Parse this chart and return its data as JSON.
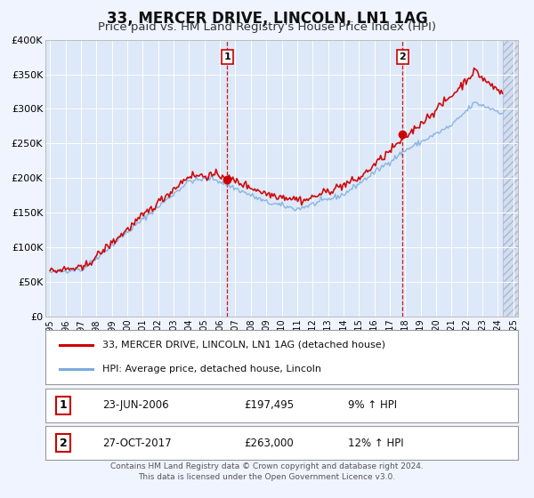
{
  "title": "33, MERCER DRIVE, LINCOLN, LN1 1AG",
  "subtitle": "Price paid vs. HM Land Registry's House Price Index (HPI)",
  "ylim": [
    0,
    400000
  ],
  "yticks": [
    0,
    50000,
    100000,
    150000,
    200000,
    250000,
    300000,
    350000,
    400000
  ],
  "ytick_labels": [
    "£0",
    "£50K",
    "£100K",
    "£150K",
    "£200K",
    "£250K",
    "£300K",
    "£350K",
    "£400K"
  ],
  "xlim": [
    1994.7,
    2025.3
  ],
  "data_xlim_end": 2024.3,
  "xticks": [
    1995,
    1996,
    1997,
    1998,
    1999,
    2000,
    2001,
    2002,
    2003,
    2004,
    2005,
    2006,
    2007,
    2008,
    2009,
    2010,
    2011,
    2012,
    2013,
    2014,
    2015,
    2016,
    2017,
    2018,
    2019,
    2020,
    2021,
    2022,
    2023,
    2024,
    2025
  ],
  "bg_color": "#f0f4ff",
  "plot_bg": "#dde8f8",
  "grid_color": "#ffffff",
  "hatch_color": "#c8d4e8",
  "red_color": "#cc0000",
  "blue_color": "#7aabdd",
  "marker1_x": 2006.47,
  "marker1_y": 197495,
  "marker2_x": 2017.82,
  "marker2_y": 263000,
  "vline1_x": 2006.47,
  "vline2_x": 2017.82,
  "legend_label_red": "33, MERCER DRIVE, LINCOLN, LN1 1AG (detached house)",
  "legend_label_blue": "HPI: Average price, detached house, Lincoln",
  "table_row1": [
    "1",
    "23-JUN-2006",
    "£197,495",
    "9% ↑ HPI"
  ],
  "table_row2": [
    "2",
    "27-OCT-2017",
    "£263,000",
    "12% ↑ HPI"
  ],
  "footer1": "Contains HM Land Registry data © Crown copyright and database right 2024.",
  "footer2": "This data is licensed under the Open Government Licence v3.0."
}
